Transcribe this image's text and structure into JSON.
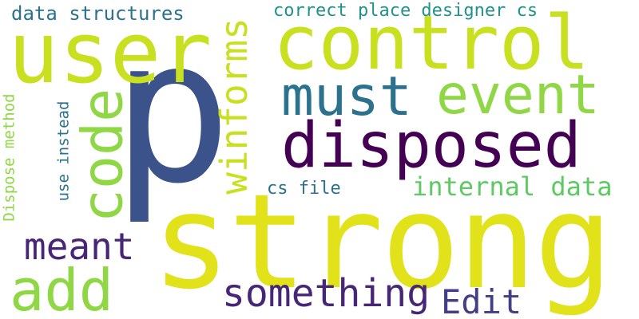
{
  "colors": {
    "background": "#ffffff",
    "yellow": "#e2e21a",
    "yellow_green": "#c8e020",
    "light_green": "#8fd744",
    "green": "#5ec962",
    "teal": "#21918c",
    "steel_blue": "#2c728e",
    "slate_blue": "#3b528b",
    "indigo": "#433e85",
    "purple": "#482677",
    "dark_purple": "#440154"
  },
  "words": {
    "p": "p",
    "strong": "strong",
    "control": "control",
    "user": "user",
    "disposed": "disposed",
    "must": "must",
    "event": "event",
    "code": "code",
    "add": "add",
    "winforms": "winforms",
    "meant": "meant",
    "something": "something",
    "edit": "Edit",
    "internal_data": "internal data",
    "data_structures": "data structures",
    "correct_place_designer_cs": "correct place designer cs",
    "cs_file": "cs file",
    "dispose_method": "Dispose method",
    "use_instead": "use instead"
  }
}
